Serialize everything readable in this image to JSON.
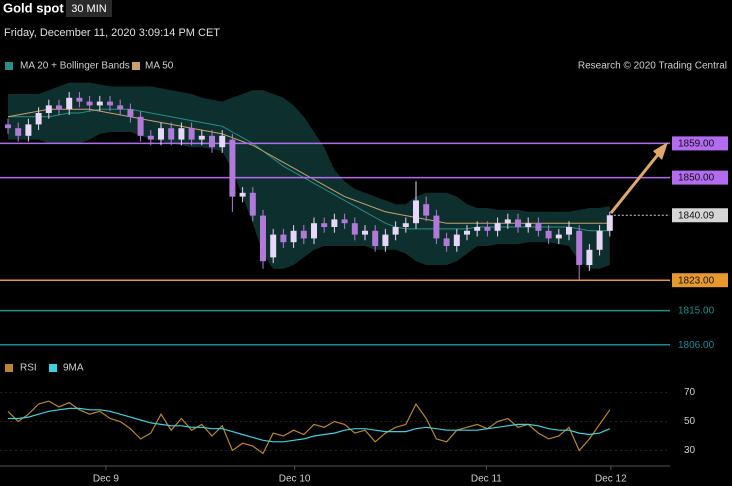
{
  "chart_data": [
    {
      "type": "candlestick",
      "title": "Gold spot",
      "timeframe": "30 MIN",
      "subtitle": "Friday, December 11, 2020 3:09:14 PM CET",
      "source": "Research © 2020 Trading Central",
      "ylim": [
        1802,
        1877
      ],
      "candles": {
        "up_color": "#e6d8f6",
        "down_color": "#b27ad8",
        "open": [
          1864,
          1863,
          1861,
          1864,
          1867,
          1869,
          1868,
          1871,
          1870,
          1869,
          1870,
          1869,
          1868,
          1866,
          1861,
          1860,
          1863,
          1860,
          1863,
          1860,
          1861,
          1858,
          1860,
          1845,
          1846,
          1840,
          1829,
          1835,
          1833,
          1836,
          1834,
          1838,
          1837,
          1839,
          1838,
          1835,
          1836,
          1832,
          1835,
          1837,
          1838,
          1843,
          1840,
          1834,
          1832,
          1835,
          1836,
          1837,
          1836,
          1838,
          1839,
          1837,
          1838,
          1836,
          1834,
          1835,
          1836,
          1827,
          1831,
          1836
        ],
        "high": [
          1865.5,
          1864.5,
          1865.5,
          1868.5,
          1870.5,
          1870.5,
          1872.5,
          1872.5,
          1871.5,
          1871.5,
          1871.5,
          1870.5,
          1869.5,
          1867.5,
          1862.5,
          1864.5,
          1864.5,
          1864.5,
          1864.5,
          1862.5,
          1862.5,
          1862.5,
          1861.5,
          1847.5,
          1847.5,
          1841.5,
          1836.5,
          1836.5,
          1837.5,
          1837.5,
          1839.5,
          1839.5,
          1840.5,
          1840.5,
          1839.5,
          1837.5,
          1837.5,
          1836.5,
          1838.5,
          1839.5,
          1849,
          1845,
          1841.5,
          1835.5,
          1836.5,
          1837.5,
          1838.5,
          1838.5,
          1839.5,
          1840.5,
          1840.5,
          1839.5,
          1839.5,
          1837.5,
          1836.5,
          1838.5,
          1837.5,
          1832.5,
          1837.5,
          1841
        ],
        "low": [
          1861.5,
          1859.5,
          1859.5,
          1862.5,
          1865.5,
          1866.5,
          1866.5,
          1868.5,
          1867.5,
          1867.5,
          1867.5,
          1866.5,
          1864.5,
          1859.5,
          1858.5,
          1858.5,
          1858.5,
          1858.5,
          1858.5,
          1858.5,
          1856.5,
          1856.5,
          1841,
          1843.5,
          1838.5,
          1826,
          1827.5,
          1831.5,
          1831.5,
          1832.5,
          1832.5,
          1835.5,
          1835.5,
          1836.5,
          1833.5,
          1833.5,
          1830.5,
          1830.5,
          1833.5,
          1835.5,
          1836.5,
          1838.5,
          1832.5,
          1830.5,
          1830.5,
          1833.5,
          1834.5,
          1834.5,
          1834.5,
          1836.5,
          1835.5,
          1835.5,
          1834.5,
          1832.5,
          1832.5,
          1833.5,
          1823,
          1825.5,
          1829.5,
          1834.5
        ],
        "close": [
          1863,
          1861,
          1864,
          1867,
          1869,
          1868,
          1871,
          1870,
          1869,
          1870,
          1869,
          1868,
          1866,
          1861,
          1860,
          1863,
          1860,
          1863,
          1860,
          1861,
          1858,
          1861,
          1845,
          1846,
          1840,
          1828,
          1835,
          1833,
          1836,
          1834,
          1838,
          1837,
          1839,
          1838,
          1835,
          1836,
          1832,
          1835,
          1837,
          1838,
          1844,
          1840,
          1834,
          1832,
          1835,
          1836,
          1837,
          1836,
          1838,
          1839,
          1837,
          1838,
          1836,
          1834,
          1835,
          1837,
          1827,
          1831,
          1836,
          1840.09
        ]
      },
      "series": [
        {
          "name": "MA 20 + Bollinger Bands",
          "color": "#2a8c86",
          "band_color": "#0e3533",
          "values": [
            1866,
            1866,
            1866,
            1866,
            1866,
            1866.5,
            1867,
            1867,
            1867.5,
            1868,
            1868,
            1868,
            1868,
            1867.5,
            1867,
            1866.5,
            1866,
            1865.5,
            1865,
            1864.5,
            1864,
            1863.5,
            1862,
            1860.5,
            1859,
            1857,
            1855,
            1853,
            1851.5,
            1850,
            1848.5,
            1847,
            1845.5,
            1844,
            1842.5,
            1841,
            1839.5,
            1838,
            1837,
            1836.5,
            1836.5,
            1836.5,
            1836.5,
            1836.5,
            1836.5,
            1836.5,
            1837,
            1837,
            1837,
            1837,
            1837,
            1837,
            1837,
            1837,
            1837,
            1837,
            1836.5,
            1836,
            1836,
            1836
          ],
          "upper": [
            1872,
            1872,
            1872,
            1872,
            1873,
            1874,
            1875,
            1875,
            1875,
            1874.5,
            1874,
            1874,
            1874,
            1874,
            1874,
            1873.5,
            1873,
            1872.5,
            1872,
            1871,
            1870.5,
            1870,
            1871,
            1872,
            1873,
            1873,
            1872,
            1871,
            1869,
            1866,
            1862,
            1858,
            1852,
            1849,
            1847,
            1846,
            1845,
            1844,
            1843,
            1843,
            1845,
            1846,
            1846,
            1846,
            1845,
            1843,
            1842,
            1842,
            1841.5,
            1841.5,
            1841.5,
            1841,
            1841,
            1841,
            1841,
            1841,
            1841.5,
            1842,
            1842,
            1842.5
          ],
          "lower": [
            1860,
            1860,
            1860,
            1860,
            1859,
            1859,
            1859,
            1859,
            1860,
            1861.5,
            1862,
            1862,
            1862,
            1861,
            1860,
            1859.5,
            1859,
            1858.5,
            1858,
            1858,
            1857.5,
            1857,
            1852,
            1845,
            1838,
            1830,
            1826,
            1826,
            1827,
            1829,
            1831,
            1832,
            1832,
            1832,
            1832,
            1832,
            1831,
            1831,
            1831,
            1830,
            1828,
            1827,
            1827,
            1827,
            1828,
            1830,
            1832,
            1832,
            1832.5,
            1832.5,
            1832.5,
            1833,
            1833,
            1833,
            1832.5,
            1832,
            1828,
            1826,
            1826,
            1827
          ]
        },
        {
          "name": "MA 50",
          "color": "#c8a06a",
          "values": [
            1866,
            1866.5,
            1867,
            1867.5,
            1868,
            1868,
            1868,
            1868,
            1868,
            1867.5,
            1867,
            1866.5,
            1866,
            1865.5,
            1865,
            1864.5,
            1864,
            1863.5,
            1863,
            1862.5,
            1862,
            1861.5,
            1860.5,
            1859.5,
            1858.5,
            1857,
            1855.5,
            1854,
            1852.5,
            1851,
            1849.5,
            1848,
            1846.5,
            1845,
            1844,
            1843,
            1842,
            1841,
            1840.5,
            1840,
            1839.5,
            1839,
            1838.5,
            1838,
            1838,
            1838,
            1838,
            1838,
            1838,
            1838,
            1838,
            1838,
            1838,
            1838,
            1838,
            1838,
            1838,
            1838,
            1838,
            1838
          ]
        }
      ],
      "levels": [
        {
          "value": 1859,
          "label": "1859.00",
          "color": "#b36bf0",
          "style": "box"
        },
        {
          "value": 1850,
          "label": "1850.00",
          "color": "#b36bf0",
          "style": "box"
        },
        {
          "value": 1840.09,
          "color": "#d6d6d6",
          "style": "dotted"
        },
        {
          "value": 1823,
          "label": "1823.00",
          "color": "#e69a2e",
          "style": "box"
        },
        {
          "value": 1815,
          "label": "1815.00",
          "color": "#17958a",
          "style": "text"
        },
        {
          "value": 1806,
          "label": "1806.00",
          "color": "#178a99",
          "style": "text"
        }
      ]
    },
    {
      "type": "line",
      "ylim": [
        20,
        82
      ],
      "yticks": [
        70,
        50,
        30
      ],
      "xticks": [
        {
          "value": 9.6,
          "label": "Dec 9"
        },
        {
          "value": 28.1,
          "label": "Dec 10"
        },
        {
          "value": 46.9,
          "label": "Dec 11"
        },
        {
          "value": 59.1,
          "label": "Dec 12"
        }
      ],
      "series": [
        {
          "name": "RSI",
          "color": "#b8862b",
          "values": [
            57,
            50,
            55,
            62,
            64,
            60,
            63,
            58,
            55,
            57,
            52,
            50,
            45,
            38,
            42,
            55,
            44,
            52,
            44,
            48,
            40,
            47,
            30,
            35,
            33,
            28,
            42,
            40,
            44,
            41,
            48,
            46,
            50,
            48,
            42,
            44,
            36,
            42,
            46,
            48,
            62,
            52,
            38,
            36,
            44,
            46,
            48,
            45,
            50,
            52,
            46,
            48,
            42,
            38,
            40,
            46,
            30,
            38,
            48,
            58
          ]
        },
        {
          "name": "9MA",
          "color": "#3fd0e0",
          "values": [
            52,
            52,
            53,
            55,
            57,
            58,
            59,
            59,
            58,
            58,
            57,
            55,
            53,
            51,
            49,
            48,
            47,
            47,
            46,
            46,
            45,
            45,
            43,
            41,
            39,
            37,
            36,
            36,
            37,
            38,
            40,
            41,
            42,
            44,
            45,
            45,
            44,
            43,
            43,
            43,
            45,
            46,
            45,
            44,
            44,
            44,
            44,
            45,
            46,
            47,
            48,
            48,
            47,
            45,
            44,
            44,
            42,
            41,
            42,
            45
          ]
        }
      ]
    }
  ]
}
